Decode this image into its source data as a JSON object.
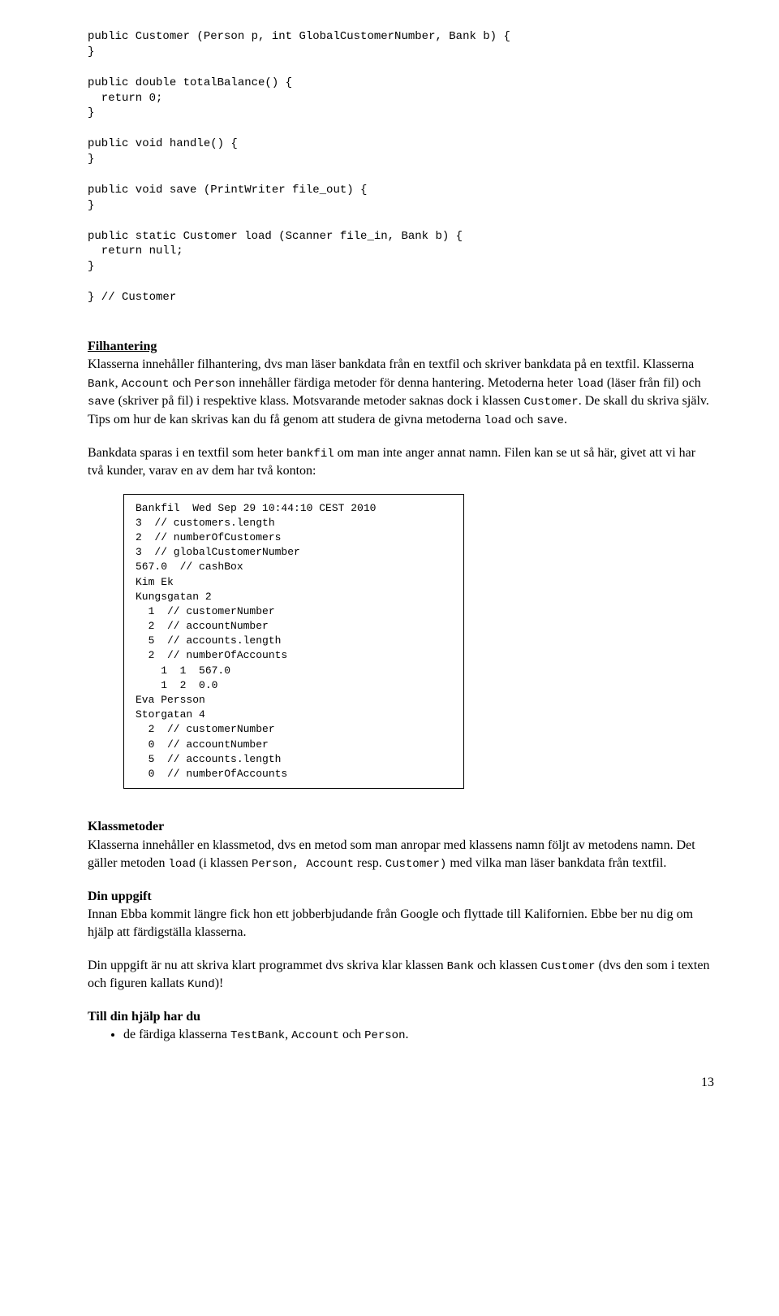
{
  "code_block_top": "public Customer (Person p, int GlobalCustomerNumber, Bank b) {\n}\n\npublic double totalBalance() {\n  return 0;\n}\n\npublic void handle() {\n}\n\npublic void save (PrintWriter file_out) {\n}\n\npublic static Customer load (Scanner file_in, Bank b) {\n  return null;\n}\n\n} // Customer",
  "sections": [
    {
      "heading": "Filhantering",
      "paragraphs": [
        [
          {
            "t": "Klasserna innehåller filhantering, dvs man läser bankdata från en textfil och skriver bankdata på en textfil. Klasserna "
          },
          {
            "t": "Bank",
            "code": true
          },
          {
            "t": ", "
          },
          {
            "t": "Account",
            "code": true
          },
          {
            "t": "  och "
          },
          {
            "t": "Person",
            "code": true
          },
          {
            "t": " innehåller färdiga metoder för denna hantering. Metoderna heter "
          },
          {
            "t": "load",
            "code": true
          },
          {
            "t": " (läser från fil) och "
          },
          {
            "t": "save",
            "code": true
          },
          {
            "t": " (skriver på fil) i respektive klass. Motsvarande metoder saknas dock i klassen "
          },
          {
            "t": "Customer",
            "code": true
          },
          {
            "t": ". De skall du skriva själv. Tips om hur de kan skrivas kan du få genom att studera de givna metoderna "
          },
          {
            "t": "load",
            "code": true
          },
          {
            "t": " och "
          },
          {
            "t": "save",
            "code": true
          },
          {
            "t": "."
          }
        ],
        [
          {
            "t": "Bankdata sparas i en textfil som heter "
          },
          {
            "t": "bankfil",
            "code": true
          },
          {
            "t": " om man inte anger annat namn. Filen kan se ut så här, givet att vi har två kunder, varav en av dem har två konton:"
          }
        ]
      ]
    }
  ],
  "boxed_text": "Bankfil  Wed Sep 29 10:44:10 CEST 2010\n3  // customers.length\n2  // numberOfCustomers\n3  // globalCustomerNumber\n567.0  // cashBox\nKim Ek\nKungsgatan 2\n  1  // customerNumber\n  2  // accountNumber\n  5  // accounts.length\n  2  // numberOfAccounts\n    1  1  567.0\n    1  2  0.0\nEva Persson\nStorgatan 4\n  2  // customerNumber\n  0  // accountNumber\n  5  // accounts.length\n  0  // numberOfAccounts",
  "klassmetoder": {
    "heading": "Klassmetoder",
    "runs": [
      {
        "t": "Klasserna innehåller en klassmetod, dvs en metod  som man anropar med klassens namn följt av metodens namn"
      },
      {
        "t": ". "
      },
      {
        "t": "Det gäller metoden  "
      },
      {
        "t": "load",
        "code": true
      },
      {
        "t": "  (i klassen "
      },
      {
        "t": "Person,  Account",
        "code": true
      },
      {
        "t": "  resp"
      },
      {
        "t": ". "
      },
      {
        "t": "Customer)",
        "code": true
      },
      {
        "t": "  med vilka man läser bankdata från textfil."
      }
    ]
  },
  "dinuppgift": {
    "heading": "Din uppgift",
    "para1": "Innan Ebba kommit längre fick hon ett jobberbjudande från Google och flyttade till Kalifornien. Ebbe ber nu dig om hjälp att färdigställa klasserna.",
    "para2_runs": [
      {
        "t": "Din uppgift är nu att skriva klart programmet dvs skriva klar klassen "
      },
      {
        "t": "Bank",
        "code": true
      },
      {
        "t": " och klassen "
      },
      {
        "t": "Customer",
        "code": true
      },
      {
        "t": " (dvs den som i texten och figuren kallats "
      },
      {
        "t": "Kund",
        "code": true
      },
      {
        "t": ")!"
      }
    ]
  },
  "tillhjalp": {
    "heading": "Till din hjälp har du",
    "bullet_runs": [
      {
        "t": "de färdiga klasserna "
      },
      {
        "t": "TestBank",
        "code": true
      },
      {
        "t": ", "
      },
      {
        "t": "Account",
        "code": true
      },
      {
        "t": " och "
      },
      {
        "t": "Person",
        "code": true
      },
      {
        "t": "."
      }
    ]
  },
  "page_number": "13"
}
